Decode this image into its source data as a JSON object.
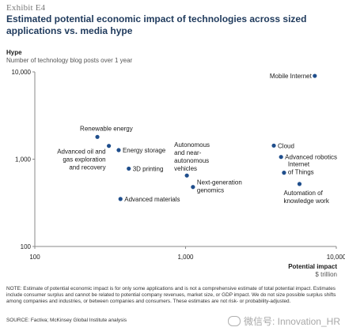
{
  "exhibit": "Exhibit E4",
  "title": "Estimated potential economic impact of technologies across sized applications vs. media hype",
  "y_title": "Hype",
  "y_subtitle": "Number of technology blog posts over 1 year",
  "x_title": "Potential impact",
  "x_subtitle": "$ trillion",
  "note": "NOTE: Estimate of potential economic impact is for only some applications and is not a comprehensive estimate of total potential impact. Estimates include consumer surplus and cannot be related to potential company revenues, market size, or GDP impact. We do not size possible surplus shifts among companies and industries, or between companies and consumers. These estimates are not risk- or probability-adjusted.",
  "source": "SOURCE: Factiva; McKinsey Global Institute analysis",
  "watermark": "微信号: Innovation_HR",
  "colors": {
    "point": "#1f4e8c",
    "axis": "#8a8a8a",
    "title": "#1f3a5c"
  },
  "chart_data": {
    "type": "scatter",
    "x_scale": "log",
    "y_scale": "log",
    "xlim": [
      100,
      10000
    ],
    "ylim": [
      100,
      10000
    ],
    "x_ticks": [
      "100",
      "1,000",
      "10,000"
    ],
    "y_ticks": [
      "10,000",
      "1,000",
      "100"
    ],
    "grid": false,
    "points": [
      {
        "label": "Mobile Internet",
        "x": 7200,
        "y": 9000
      },
      {
        "label": "Renewable energy",
        "x": 260,
        "y": 1800
      },
      {
        "label": "Advanced oil and gas exploration and recovery",
        "x": 310,
        "y": 1420
      },
      {
        "label": "Energy storage",
        "x": 360,
        "y": 1270
      },
      {
        "label": "3D printing",
        "x": 420,
        "y": 780
      },
      {
        "label": "Autonomous and near-autonomous vehicles",
        "x": 1020,
        "y": 650
      },
      {
        "label": "Next-generation genomics",
        "x": 1120,
        "y": 480
      },
      {
        "label": "Advanced materials",
        "x": 370,
        "y": 350
      },
      {
        "label": "Cloud",
        "x": 3850,
        "y": 1430
      },
      {
        "label": "Advanced robotics",
        "x": 4300,
        "y": 1060
      },
      {
        "label": "Internet of Things",
        "x": 4500,
        "y": 700
      },
      {
        "label": "Automation of knowledge work",
        "x": 5700,
        "y": 520
      }
    ]
  }
}
